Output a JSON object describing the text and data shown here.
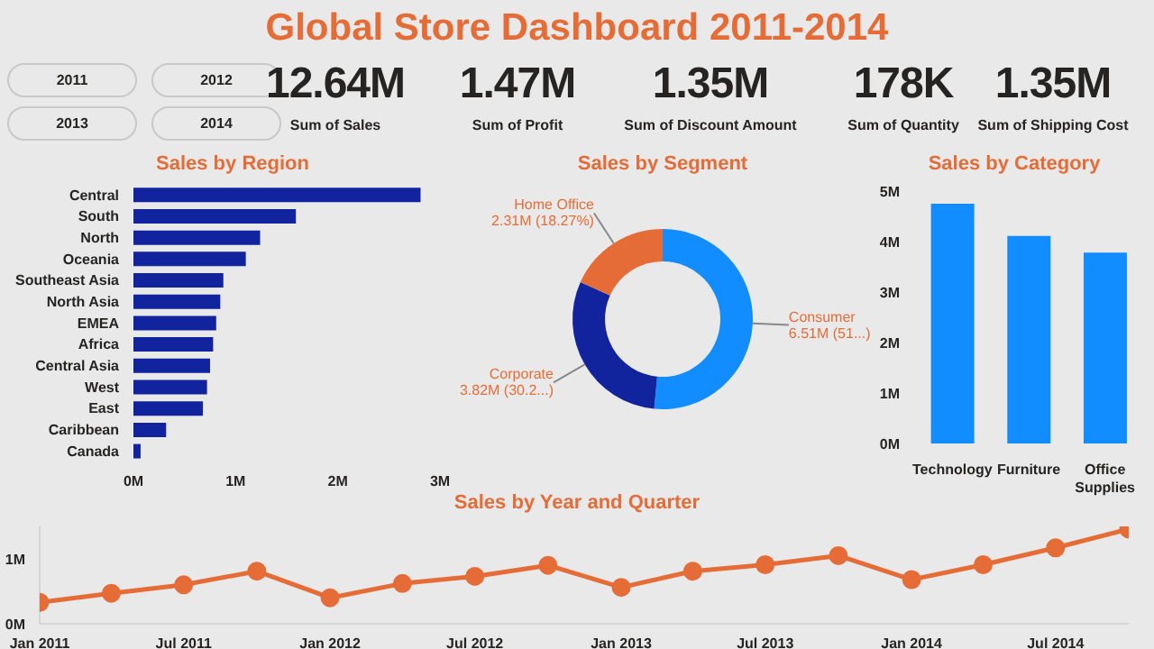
{
  "chart_data": [
    {
      "type": "other",
      "title": "Global Store Dashboard 2011-2014",
      "annotations": [
        "2011",
        "2012",
        "2013",
        "2014"
      ]
    },
    {
      "type": "other",
      "annotations": [
        "12.64M",
        "Sum of Sales",
        "1.47M",
        "Sum of Profit",
        "1.35M",
        "Sum of Discount Amount",
        "178K",
        "Sum of Quantity",
        "1.35M",
        "Sum of Shipping Cost"
      ]
    },
    {
      "type": "bar",
      "title": "Sales by Region",
      "orientation": "horizontal",
      "categories": [
        "Central",
        "South",
        "North",
        "Oceania",
        "Southeast Asia",
        "North Asia",
        "EMEA",
        "Africa",
        "Central Asia",
        "West",
        "East",
        "Caribbean",
        "Canada"
      ],
      "values": [
        2.81,
        1.59,
        1.24,
        1.1,
        0.88,
        0.85,
        0.81,
        0.78,
        0.75,
        0.72,
        0.68,
        0.32,
        0.07
      ],
      "color": "#12239e",
      "xlim": [
        0,
        3
      ],
      "xticks": [
        {
          "value": 0,
          "label": "0M"
        },
        {
          "value": 1,
          "label": "1M"
        },
        {
          "value": 2,
          "label": "2M"
        },
        {
          "value": 3,
          "label": "3M"
        }
      ],
      "grid": false,
      "legend": false
    },
    {
      "type": "donut",
      "title": "Sales by Segment",
      "categories": [
        "Consumer",
        "Corporate",
        "Home Office"
      ],
      "values": [
        6510000,
        3820000,
        2310000
      ],
      "colors": [
        "#118dff",
        "#12239e",
        "#e66c37"
      ],
      "value_labels": [
        "6.51M (51...)",
        "3.82M (30.2...)",
        "2.31M (18.27%)"
      ],
      "legend": false
    },
    {
      "type": "bar",
      "title": "Sales by Category",
      "categories": [
        "Technology",
        "Furniture",
        "Office Supplies"
      ],
      "values": [
        4.75,
        4.11,
        3.78
      ],
      "color": "#118dff",
      "ylim": [
        0,
        5
      ],
      "yticks": [
        {
          "value": 0,
          "label": "0M"
        },
        {
          "value": 1,
          "label": "1M"
        },
        {
          "value": 2,
          "label": "2M"
        },
        {
          "value": 3,
          "label": "3M"
        },
        {
          "value": 4,
          "label": "4M"
        },
        {
          "value": 5,
          "label": "5M"
        }
      ],
      "grid": false,
      "legend": false
    },
    {
      "type": "line",
      "title": "Sales by Year and Quarter",
      "x": [
        "2011-01",
        "2011-04",
        "2011-07",
        "2011-10",
        "2012-01",
        "2012-04",
        "2012-07",
        "2012-10",
        "2013-01",
        "2013-04",
        "2013-07",
        "2013-10",
        "2014-01",
        "2014-04",
        "2014-07",
        "2014-10"
      ],
      "values": [
        0.33,
        0.47,
        0.6,
        0.81,
        0.4,
        0.62,
        0.73,
        0.9,
        0.56,
        0.81,
        0.91,
        1.05,
        0.68,
        0.91,
        1.17,
        1.46
      ],
      "color": "#e66c37",
      "marker": "circle",
      "line_style": "solid",
      "xlim": [
        "2011-01",
        "2014-10"
      ],
      "xticks": [
        {
          "value": "2011-01",
          "label": "Jan 2011"
        },
        {
          "value": "2011-07",
          "label": "Jul 2011"
        },
        {
          "value": "2012-01",
          "label": "Jan 2012"
        },
        {
          "value": "2012-07",
          "label": "Jul 2012"
        },
        {
          "value": "2013-01",
          "label": "Jan 2013"
        },
        {
          "value": "2013-07",
          "label": "Jul 2013"
        },
        {
          "value": "2014-01",
          "label": "Jan 2014"
        },
        {
          "value": "2014-07",
          "label": "Jul 2014"
        }
      ],
      "ylim": [
        0,
        1.5
      ],
      "yticks": [
        {
          "value": 0,
          "label": "0M"
        },
        {
          "value": 1,
          "label": "1M"
        }
      ],
      "grid": false,
      "legend": false
    }
  ]
}
